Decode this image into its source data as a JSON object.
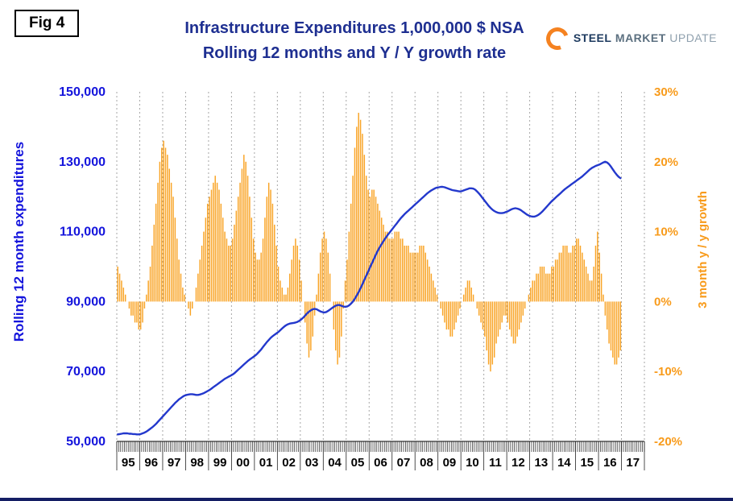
{
  "fig_label": "Fig 4",
  "title": {
    "line1": "Infrastructure Expenditures 1,000,000 $ NSA",
    "line2": "Rolling 12 months and Y / Y growth rate"
  },
  "logo": {
    "word1": "STEEL",
    "word2": "MARKET",
    "word3": "UPDATE"
  },
  "left_axis": {
    "title": "Rolling 12 month expenditures",
    "ticks": [
      "150,000",
      "130,000",
      "110,000",
      "90,000",
      "70,000",
      "50,000"
    ],
    "min": 50000,
    "max": 150000
  },
  "right_axis": {
    "title": "3 month y / y growth",
    "ticks": [
      "30%",
      "20%",
      "10%",
      "0%",
      "-10%",
      "-20%"
    ],
    "min": -20,
    "max": 30
  },
  "x_axis": {
    "years": [
      "95",
      "96",
      "97",
      "98",
      "99",
      "00",
      "01",
      "02",
      "03",
      "04",
      "05",
      "06",
      "07",
      "08",
      "09",
      "10",
      "11",
      "12",
      "13",
      "14",
      "15",
      "16",
      "17"
    ]
  },
  "colors": {
    "title": "#1e2f91",
    "line": "#2338cc",
    "left_labels": "#1414dc",
    "bars": "#f9a426",
    "right_labels": "#f89b1b",
    "gridline": "#a6a6a6",
    "axis": "#000000"
  },
  "chart_data": {
    "type": "line+bar",
    "title": "Infrastructure Expenditures 1,000,000 $ NSA — Rolling 12 months and Y / Y growth rate",
    "frequency": "monthly",
    "start_year": 1995,
    "x_domain_years": 23,
    "left_ylim": [
      50000,
      150000
    ],
    "right_ylim": [
      -20,
      30
    ],
    "grid": "vertical-dashed-yearly",
    "line_series": {
      "name": "Rolling 12 month expenditures (1,000,000 $)",
      "axis": "left",
      "values": [
        52000,
        52100,
        52200,
        52300,
        52300,
        52300,
        52200,
        52200,
        52100,
        52100,
        52000,
        52000,
        52100,
        52300,
        52500,
        52800,
        53200,
        53600,
        54000,
        54500,
        55000,
        55600,
        56200,
        56800,
        57400,
        58000,
        58600,
        59200,
        59800,
        60400,
        61000,
        61500,
        62000,
        62400,
        62800,
        63100,
        63300,
        63400,
        63500,
        63500,
        63400,
        63300,
        63300,
        63400,
        63600,
        63800,
        64100,
        64400,
        64700,
        65100,
        65500,
        65900,
        66300,
        66700,
        67100,
        67500,
        67900,
        68200,
        68500,
        68800,
        69100,
        69500,
        70000,
        70500,
        71000,
        71500,
        72000,
        72500,
        73000,
        73400,
        73800,
        74200,
        74600,
        75100,
        75700,
        76300,
        77000,
        77700,
        78400,
        79000,
        79600,
        80100,
        80500,
        80900,
        81300,
        81800,
        82300,
        82800,
        83200,
        83500,
        83700,
        83800,
        83900,
        84000,
        84200,
        84500,
        84900,
        85400,
        86000,
        86600,
        87100,
        87500,
        87800,
        87900,
        87800,
        87500,
        87200,
        87000,
        86900,
        87000,
        87300,
        87700,
        88100,
        88500,
        88800,
        89000,
        89000,
        88800,
        88600,
        88500,
        88600,
        88900,
        89400,
        90000,
        90800,
        91700,
        92700,
        93800,
        95000,
        96200,
        97400,
        98600,
        99800,
        101000,
        102200,
        103400,
        104500,
        105500,
        106400,
        107300,
        108100,
        108900,
        109600,
        110300,
        111000,
        111700,
        112400,
        113100,
        113800,
        114400,
        115000,
        115500,
        116000,
        116500,
        117000,
        117500,
        118000,
        118500,
        119000,
        119500,
        120000,
        120500,
        121000,
        121400,
        121800,
        122100,
        122400,
        122600,
        122700,
        122800,
        122800,
        122700,
        122500,
        122300,
        122100,
        121900,
        121800,
        121700,
        121600,
        121500,
        121600,
        121800,
        122000,
        122200,
        122400,
        122400,
        122300,
        122000,
        121500,
        120900,
        120200,
        119500,
        118800,
        118100,
        117400,
        116800,
        116300,
        115900,
        115600,
        115400,
        115300,
        115300,
        115400,
        115600,
        115800,
        116100,
        116400,
        116600,
        116700,
        116600,
        116400,
        116100,
        115700,
        115300,
        114900,
        114600,
        114400,
        114300,
        114300,
        114500,
        114800,
        115200,
        115700,
        116300,
        116900,
        117500,
        118100,
        118700,
        119200,
        119700,
        120200,
        120700,
        121200,
        121700,
        122200,
        122600,
        123000,
        123400,
        123800,
        124200,
        124600,
        125000,
        125400,
        125800,
        126300,
        126800,
        127300,
        127800,
        128200,
        128500,
        128800,
        129000,
        129200,
        129500,
        129800,
        130000,
        129800,
        129300,
        128600,
        127800,
        127000,
        126300,
        125700,
        125300
      ]
    },
    "bar_series": {
      "name": "3 month y / y growth (%)",
      "axis": "right",
      "values": [
        5,
        4,
        3,
        2,
        1,
        0,
        -1,
        -2,
        -2,
        -3,
        -3,
        -4,
        -4,
        -3,
        -1,
        1,
        3,
        5,
        8,
        11,
        14,
        17,
        20,
        22,
        23,
        22,
        21,
        19,
        17,
        15,
        12,
        9,
        6,
        4,
        2,
        1,
        0,
        -1,
        -2,
        -1,
        0,
        2,
        4,
        6,
        8,
        10,
        12,
        14,
        15,
        16,
        17,
        18,
        17,
        16,
        14,
        12,
        10,
        9,
        8,
        8,
        9,
        11,
        13,
        15,
        17,
        19,
        21,
        20,
        18,
        15,
        12,
        9,
        7,
        6,
        6,
        7,
        9,
        12,
        15,
        17,
        16,
        14,
        11,
        8,
        5,
        3,
        2,
        1,
        1,
        2,
        4,
        6,
        8,
        9,
        8,
        6,
        3,
        0,
        -3,
        -6,
        -8,
        -7,
        -5,
        -2,
        1,
        4,
        7,
        9,
        10,
        9,
        7,
        4,
        0,
        -4,
        -7,
        -9,
        -8,
        -5,
        -1,
        3,
        6,
        10,
        14,
        18,
        22,
        25,
        27,
        26,
        24,
        21,
        18,
        16,
        15,
        16,
        16,
        15,
        14,
        13,
        12,
        11,
        10,
        10,
        9,
        9,
        9,
        10,
        10,
        10,
        9,
        9,
        8,
        8,
        8,
        7,
        7,
        7,
        7,
        7,
        8,
        8,
        8,
        7,
        6,
        5,
        4,
        3,
        2,
        1,
        0,
        -1,
        -2,
        -3,
        -4,
        -4,
        -5,
        -5,
        -4,
        -3,
        -2,
        -1,
        0,
        1,
        2,
        3,
        3,
        2,
        1,
        0,
        -1,
        -2,
        -3,
        -4,
        -5,
        -7,
        -9,
        -10,
        -9,
        -8,
        -6,
        -5,
        -4,
        -3,
        -2,
        -2,
        -3,
        -4,
        -5,
        -6,
        -6,
        -5,
        -4,
        -3,
        -2,
        -1,
        0,
        1,
        2,
        3,
        3,
        4,
        4,
        5,
        5,
        5,
        4,
        4,
        4,
        5,
        5,
        6,
        6,
        7,
        7,
        8,
        8,
        8,
        7,
        7,
        8,
        8,
        9,
        9,
        8,
        7,
        6,
        5,
        4,
        3,
        3,
        5,
        8,
        10,
        7,
        4,
        1,
        -2,
        -4,
        -6,
        -7,
        -8,
        -9,
        -9,
        -8,
        -7
      ]
    }
  }
}
